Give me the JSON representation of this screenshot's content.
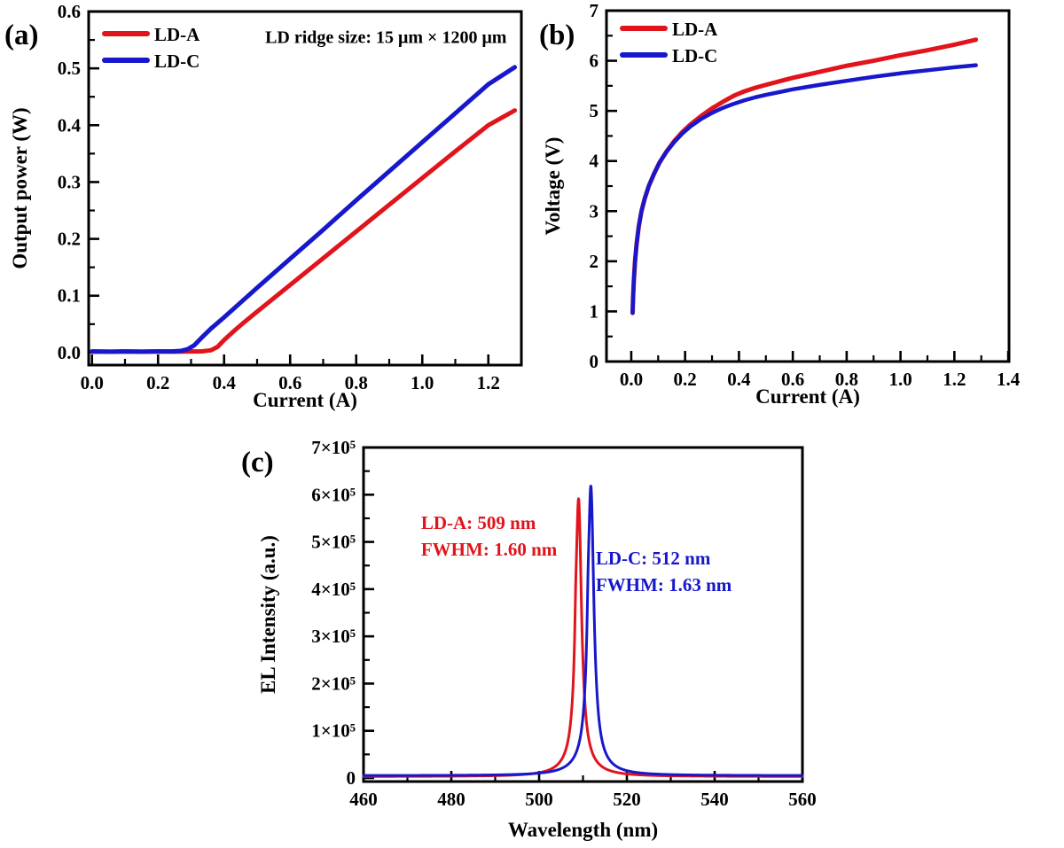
{
  "figure": {
    "description": "Laser diode characterization figure with three panels",
    "colors": {
      "ld_a": "#e1141c",
      "ld_c": "#1717cc",
      "axis": "#000000",
      "background": "#ffffff"
    }
  },
  "chart_data": [
    {
      "id": "a",
      "type": "line",
      "panel_label": "(a)",
      "xlabel": "Current (A)",
      "ylabel": "Output power (W)",
      "xlim": [
        -0.01,
        1.3
      ],
      "ylim": [
        -0.022,
        0.6
      ],
      "xticks": {
        "values": [
          0.0,
          0.2,
          0.4,
          0.6,
          0.8,
          1.0,
          1.2
        ],
        "labels": [
          "0.0",
          "0.2",
          "0.4",
          "0.6",
          "0.8",
          "1.0",
          "1.2"
        ],
        "minor": [
          0.1,
          0.3,
          0.5,
          0.7,
          0.9,
          1.1,
          1.3
        ]
      },
      "yticks": {
        "values": [
          0.0,
          0.1,
          0.2,
          0.3,
          0.4,
          0.5,
          0.6
        ],
        "labels": [
          "0.0",
          "0.1",
          "0.2",
          "0.3",
          "0.4",
          "0.5",
          "0.6"
        ],
        "minor": [
          0.05,
          0.15,
          0.25,
          0.35,
          0.45,
          0.55
        ]
      },
      "legend": [
        {
          "label": "LD-A",
          "color": "#e1141c"
        },
        {
          "label": "LD-C",
          "color": "#1717cc"
        }
      ],
      "annotations": [
        {
          "lines": [
            "LD ridge size: 15 μm × 1200 μm"
          ],
          "color": "#000000",
          "x": 0.89,
          "y": 0.545,
          "anchor": "middle",
          "size": 20
        }
      ],
      "series": [
        {
          "name": "LD-A",
          "color": "#e1141c",
          "width": 5,
          "points": [
            [
              0.0,
              0.002
            ],
            [
              0.05,
              0.0015
            ],
            [
              0.1,
              0.002
            ],
            [
              0.15,
              0.0015
            ],
            [
              0.2,
              0.002
            ],
            [
              0.25,
              0.0015
            ],
            [
              0.3,
              0.002
            ],
            [
              0.33,
              0.002
            ],
            [
              0.36,
              0.004
            ],
            [
              0.38,
              0.01
            ],
            [
              0.4,
              0.022
            ],
            [
              0.43,
              0.038
            ],
            [
              0.46,
              0.053
            ],
            [
              0.5,
              0.072
            ],
            [
              0.6,
              0.119
            ],
            [
              0.7,
              0.166
            ],
            [
              0.8,
              0.213
            ],
            [
              0.9,
              0.26
            ],
            [
              1.0,
              0.307
            ],
            [
              1.1,
              0.354
            ],
            [
              1.2,
              0.4
            ],
            [
              1.28,
              0.426
            ]
          ]
        },
        {
          "name": "LD-C",
          "color": "#1717cc",
          "width": 5,
          "points": [
            [
              0.0,
              0.002
            ],
            [
              0.05,
              0.0015
            ],
            [
              0.1,
              0.002
            ],
            [
              0.15,
              0.0015
            ],
            [
              0.2,
              0.002
            ],
            [
              0.24,
              0.002
            ],
            [
              0.27,
              0.003
            ],
            [
              0.29,
              0.006
            ],
            [
              0.31,
              0.013
            ],
            [
              0.33,
              0.025
            ],
            [
              0.36,
              0.042
            ],
            [
              0.4,
              0.062
            ],
            [
              0.45,
              0.088
            ],
            [
              0.5,
              0.114
            ],
            [
              0.6,
              0.165
            ],
            [
              0.7,
              0.216
            ],
            [
              0.8,
              0.268
            ],
            [
              0.9,
              0.319
            ],
            [
              1.0,
              0.37
            ],
            [
              1.1,
              0.421
            ],
            [
              1.2,
              0.472
            ],
            [
              1.28,
              0.502
            ]
          ]
        }
      ]
    },
    {
      "id": "b",
      "type": "line",
      "panel_label": "(b)",
      "xlabel": "Current (A)",
      "ylabel": "Voltage (V)",
      "xlim": [
        -0.092,
        1.403
      ],
      "ylim": [
        0,
        7
      ],
      "xticks": {
        "values": [
          0.0,
          0.2,
          0.4,
          0.6,
          0.8,
          1.0,
          1.2,
          1.4
        ],
        "labels": [
          "0.0",
          "0.2",
          "0.4",
          "0.6",
          "0.8",
          "1.0",
          "1.2",
          "1.4"
        ],
        "minor": [
          0.1,
          0.3,
          0.5,
          0.7,
          0.9,
          1.1,
          1.3
        ]
      },
      "yticks": {
        "values": [
          0,
          1,
          2,
          3,
          4,
          5,
          6,
          7
        ],
        "labels": [
          "0",
          "1",
          "2",
          "3",
          "4",
          "5",
          "6",
          "7"
        ],
        "minor": [
          0.5,
          1.5,
          2.5,
          3.5,
          4.5,
          5.5,
          6.5
        ]
      },
      "legend": [
        {
          "label": "LD-A",
          "color": "#e1141c"
        },
        {
          "label": "LD-C",
          "color": "#1717cc"
        }
      ],
      "annotations": [],
      "series": [
        {
          "name": "LD-A",
          "color": "#e1141c",
          "width": 5,
          "points": [
            [
              0.005,
              0.97
            ],
            [
              0.007,
              1.3
            ],
            [
              0.01,
              1.65
            ],
            [
              0.014,
              2.0
            ],
            [
              0.02,
              2.35
            ],
            [
              0.028,
              2.7
            ],
            [
              0.038,
              3.0
            ],
            [
              0.05,
              3.25
            ],
            [
              0.065,
              3.5
            ],
            [
              0.085,
              3.75
            ],
            [
              0.105,
              3.97
            ],
            [
              0.13,
              4.18
            ],
            [
              0.16,
              4.4
            ],
            [
              0.19,
              4.58
            ],
            [
              0.22,
              4.73
            ],
            [
              0.26,
              4.9
            ],
            [
              0.3,
              5.05
            ],
            [
              0.34,
              5.18
            ],
            [
              0.38,
              5.3
            ],
            [
              0.42,
              5.39
            ],
            [
              0.46,
              5.46
            ],
            [
              0.5,
              5.52
            ],
            [
              0.6,
              5.66
            ],
            [
              0.7,
              5.78
            ],
            [
              0.8,
              5.9
            ],
            [
              0.9,
              6.0
            ],
            [
              1.0,
              6.11
            ],
            [
              1.1,
              6.21
            ],
            [
              1.2,
              6.32
            ],
            [
              1.28,
              6.42
            ]
          ]
        },
        {
          "name": "LD-C",
          "color": "#1717cc",
          "width": 4.5,
          "points": [
            [
              0.005,
              0.97
            ],
            [
              0.007,
              1.3
            ],
            [
              0.01,
              1.65
            ],
            [
              0.014,
              2.0
            ],
            [
              0.02,
              2.35
            ],
            [
              0.028,
              2.7
            ],
            [
              0.038,
              3.0
            ],
            [
              0.05,
              3.25
            ],
            [
              0.065,
              3.5
            ],
            [
              0.085,
              3.75
            ],
            [
              0.105,
              3.97
            ],
            [
              0.13,
              4.18
            ],
            [
              0.16,
              4.38
            ],
            [
              0.19,
              4.55
            ],
            [
              0.22,
              4.69
            ],
            [
              0.26,
              4.84
            ],
            [
              0.3,
              4.96
            ],
            [
              0.34,
              5.06
            ],
            [
              0.38,
              5.14
            ],
            [
              0.42,
              5.21
            ],
            [
              0.46,
              5.27
            ],
            [
              0.5,
              5.32
            ],
            [
              0.6,
              5.43
            ],
            [
              0.7,
              5.52
            ],
            [
              0.8,
              5.6
            ],
            [
              0.9,
              5.68
            ],
            [
              1.0,
              5.75
            ],
            [
              1.1,
              5.81
            ],
            [
              1.2,
              5.87
            ],
            [
              1.28,
              5.91
            ]
          ]
        }
      ]
    },
    {
      "id": "c",
      "type": "line",
      "panel_label": "(c)",
      "xlabel": "Wavelength (nm)",
      "ylabel": "EL Intensity (a.u.)",
      "xlim": [
        460,
        560
      ],
      "ylim": [
        -7500,
        700000
      ],
      "xticks": {
        "values": [
          460,
          480,
          500,
          520,
          540,
          560
        ],
        "labels": [
          "460",
          "480",
          "500",
          "520",
          "540",
          "560"
        ],
        "minor": [
          470,
          490,
          510,
          530,
          550
        ]
      },
      "yticks": {
        "values": [
          0,
          100000,
          200000,
          300000,
          400000,
          500000,
          600000,
          700000
        ],
        "labels": [
          "0",
          "1×10⁵",
          "2×10⁵",
          "3×10⁵",
          "4×10⁵",
          "5×10⁵",
          "6×10⁵",
          "7×10⁵"
        ],
        "minor": [
          50000,
          150000,
          250000,
          350000,
          450000,
          550000,
          650000
        ]
      },
      "legend": [],
      "annotations": [
        {
          "lines": [
            "LD-A: 509 nm",
            "FWHM: 1.60 nm"
          ],
          "color": "#e1141c",
          "x": 473.1,
          "y": 527000,
          "anchor": "start",
          "size": 21
        },
        {
          "lines": [
            "LD-C: 512 nm",
            "FWHM: 1.63 nm"
          ],
          "color": "#1717cc",
          "x": 512.9,
          "y": 452000,
          "anchor": "start",
          "size": 21
        }
      ],
      "series": [
        {
          "name": "LD-A",
          "color": "#e1141c",
          "width": 3,
          "peak_label": "LD-A: 509 nm",
          "fwhm_label": "FWHM: 1.60 nm",
          "profile": {
            "base": 3000,
            "range": [
              460,
              560
            ],
            "step": 0.05,
            "components": [
              {
                "center": 509.0,
                "fwhm": 1.6,
                "amp": 552000
              },
              {
                "center": 509.0,
                "fwhm": 7.0,
                "amp": 30000
              },
              {
                "center": 508.35,
                "fwhm": 0.5,
                "amp": 50000
              }
            ]
          }
        },
        {
          "name": "LD-C",
          "color": "#1717cc",
          "width": 3,
          "peak_label": "LD-C: 512 nm",
          "fwhm_label": "FWHM: 1.63 nm",
          "profile": {
            "base": 5000,
            "range": [
              460,
              560
            ],
            "step": 0.05,
            "components": [
              {
                "center": 511.8,
                "fwhm": 1.63,
                "amp": 575000
              },
              {
                "center": 511.8,
                "fwhm": 7.0,
                "amp": 32000
              },
              {
                "center": 511.15,
                "fwhm": 0.5,
                "amp": 50000
              }
            ]
          }
        }
      ]
    }
  ]
}
